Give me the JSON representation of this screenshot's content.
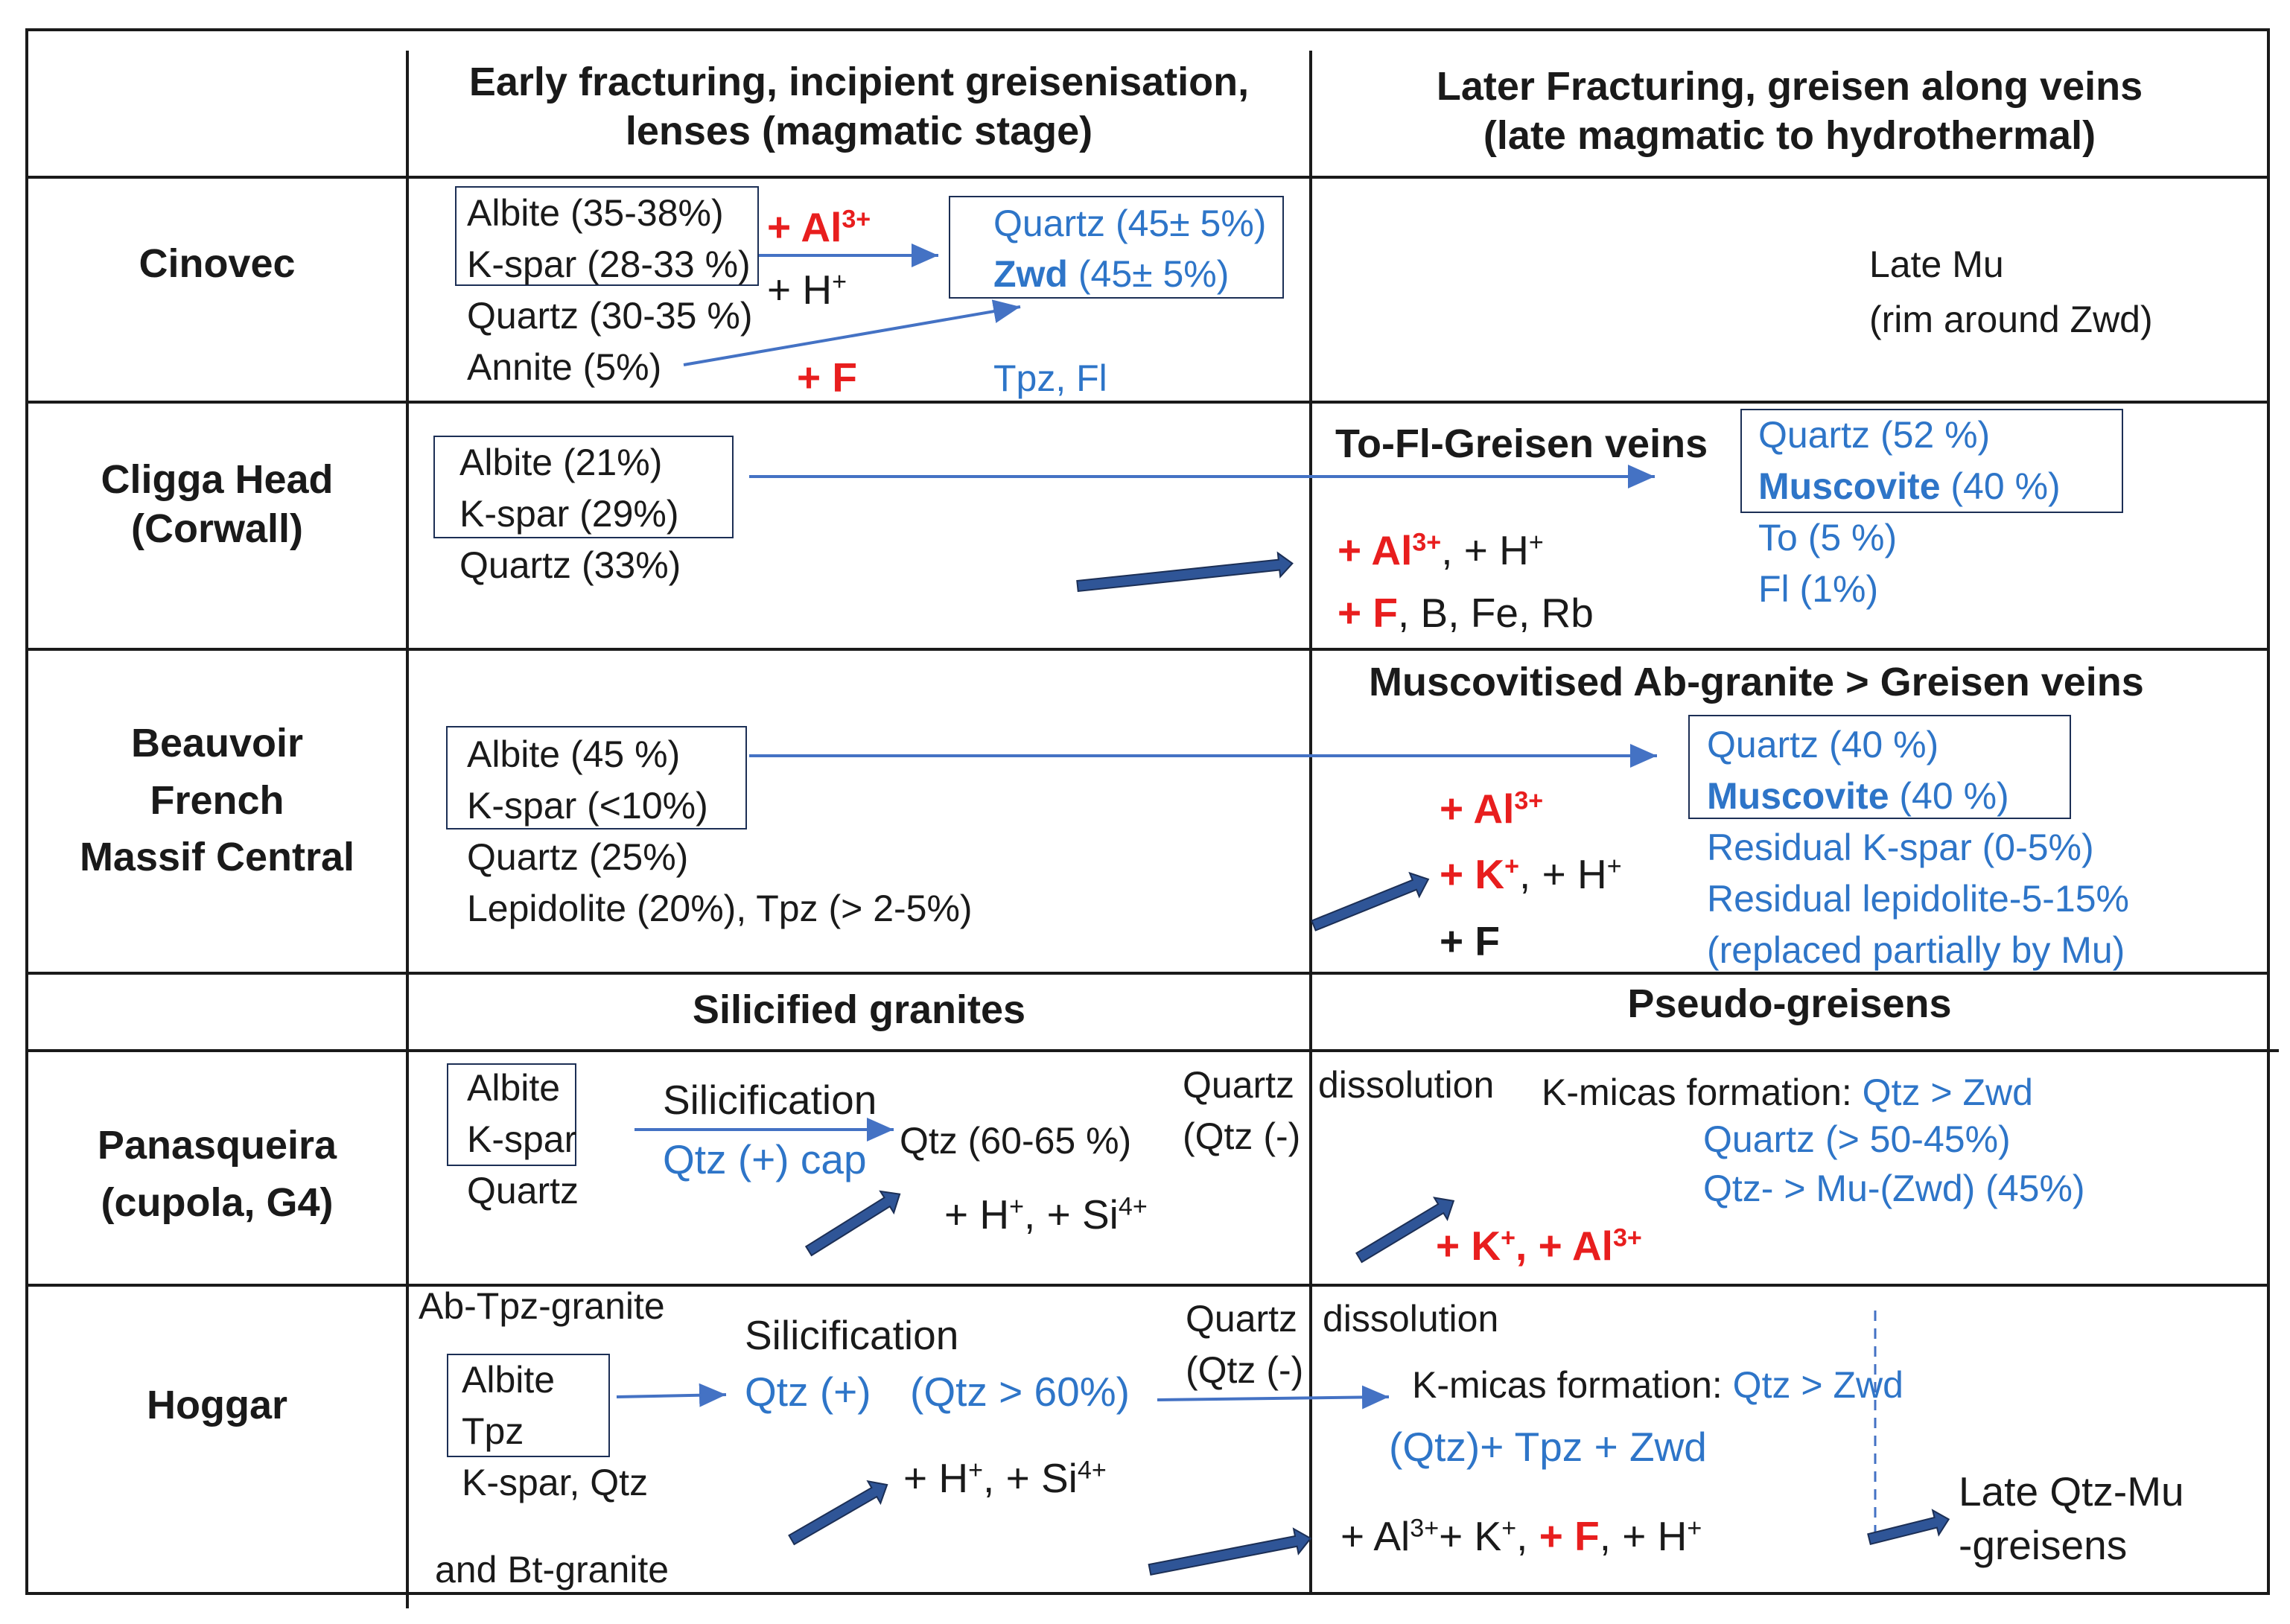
{
  "headers": {
    "early": [
      "Early fracturing, incipient greisenisation,",
      "lenses (magmatic stage)"
    ],
    "later": [
      "Later Fracturing, greisen along veins",
      "(late magmatic to hydrothermal)"
    ],
    "silicified": "Silicified granites",
    "pseudo": "Pseudo-greisens"
  },
  "sites": {
    "cinovec": "Cinovec",
    "cligga": [
      "Cligga Head",
      "(Corwall)"
    ],
    "beauvoir": [
      "Beauvoir",
      "French",
      "Massif Central"
    ],
    "panasqueira": [
      "Panasqueira",
      "(cupola, G4)"
    ],
    "hoggar": "Hoggar"
  },
  "cinovec": {
    "albite": "Albite (35-38%)",
    "kspar": "K-spar (28-33 %)",
    "quartz": "Quartz (30-35 %)",
    "annite": "Annite (5%)",
    "plus_al": "+ Al",
    "al_charge": "3+",
    "plus_h": "+ H",
    "h_charge": "+",
    "plus_f": "+ F",
    "res_quartz": "Quartz (45± 5%)",
    "res_zwd_name": "Zwd",
    "res_zwd_val": " (45± 5%)",
    "tpz_fl": "Tpz, Fl",
    "late_mu": [
      "Late Mu",
      "(rim around Zwd)"
    ]
  },
  "cligga": {
    "albite": "Albite (21%)",
    "kspar": "K-spar (29%)",
    "quartz": "Quartz (33%)",
    "veins": "To-Fl-Greisen veins",
    "plus_al": "+ Al",
    "al_charge": "3+",
    "h_part": ", + H",
    "h_charge": "+",
    "plus_f": "+ F",
    "rest": ", B, Fe, Rb",
    "res_quartz": "Quartz (52 %)",
    "res_musc_name": "Muscovite",
    "res_musc_val": " (40 %)",
    "to": "To (5 %)",
    "fl": "Fl (1%)"
  },
  "beauvoir": {
    "albite": "Albite (45 %)",
    "kspar": "K-spar (<10%)",
    "quartz": "Quartz (25%)",
    "lepid": "Lepidolite (20%), Tpz (> 2-5%)",
    "heading": "Muscovitised Ab-granite >   Greisen veins",
    "plus_al": "+ Al",
    "al_charge": "3+",
    "plus_k": "+ K",
    "k_charge": "+",
    "h_part": ", + H",
    "h_charge": "+",
    "plus_f": "+ F",
    "res_quartz": "Quartz (40 %)",
    "res_musc_name": "Muscovite",
    "res_musc_val": " (40 %)",
    "res_kspar": "Residual K-spar (0-5%)",
    "res_lepid": "Residual lepidolite-5-15%",
    "res_replaced": "(replaced partially by Mu)"
  },
  "panasqueira": {
    "albite": "Albite",
    "kspar": "K-spar",
    "quartz": "Quartz",
    "silicification": "Silicification",
    "qtz_cap": "Qtz (+) cap",
    "qtz_pct": "Qtz (60-65 %)",
    "h_si": "+ H",
    "h_charge": "+",
    "si_part": ", + Si",
    "si_charge": "4+",
    "qz_dissolution_a": "Quartz",
    "qz_dissolution_b": "dissolution",
    "qtz_minus": "(Qtz (-)",
    "kmicas_label": "K-micas formation: ",
    "kmicas_val": "Qtz > Zwd",
    "res_quartz": "Quartz (> 50-45%)",
    "res_qtz_mu": "Qtz- > Mu-(Zwd) (45%)",
    "k_al": "+ K",
    "k_charge": "+",
    "al_part": ", + Al",
    "al_charge": "3+"
  },
  "hoggar": {
    "ab_tpz_granite": "Ab-Tpz-granite",
    "albite": "Albite",
    "tpz": "Tpz",
    "kspar_qtz": "K-spar, Qtz",
    "bt_granite": "and Bt-granite",
    "silicification": "Silicification",
    "qtz_plus": "Qtz (+)",
    "qtz_60": "(Qtz > 60%)",
    "h_si": "+ H",
    "h_charge": "+",
    "si_part": ", + Si",
    "si_charge": "4+",
    "qz_dissolution_a": "Quartz",
    "qz_dissolution_b": "dissolution",
    "qtz_minus": "(Qtz (-)",
    "kmicas_label": "K-micas formation: ",
    "kmicas_val": "Qtz > Zwd",
    "qtz_tpz_zwd": "(Qtz)+ Tpz + Zwd",
    "al_k_a": "+ Al",
    "al_charge": "3+",
    "k_part": "+ K",
    "k_charge": "+",
    "f_part": "+ F",
    "h_part": ", + H",
    "h_charge2": "+",
    "late_qtz_mu": [
      "Late Qtz-Mu",
      "-greisens"
    ]
  },
  "colors": {
    "blue_text": "#2e75c8",
    "red_text": "#e81e1e",
    "arrow": "#2f5597",
    "frame": "#1a1a1a"
  }
}
